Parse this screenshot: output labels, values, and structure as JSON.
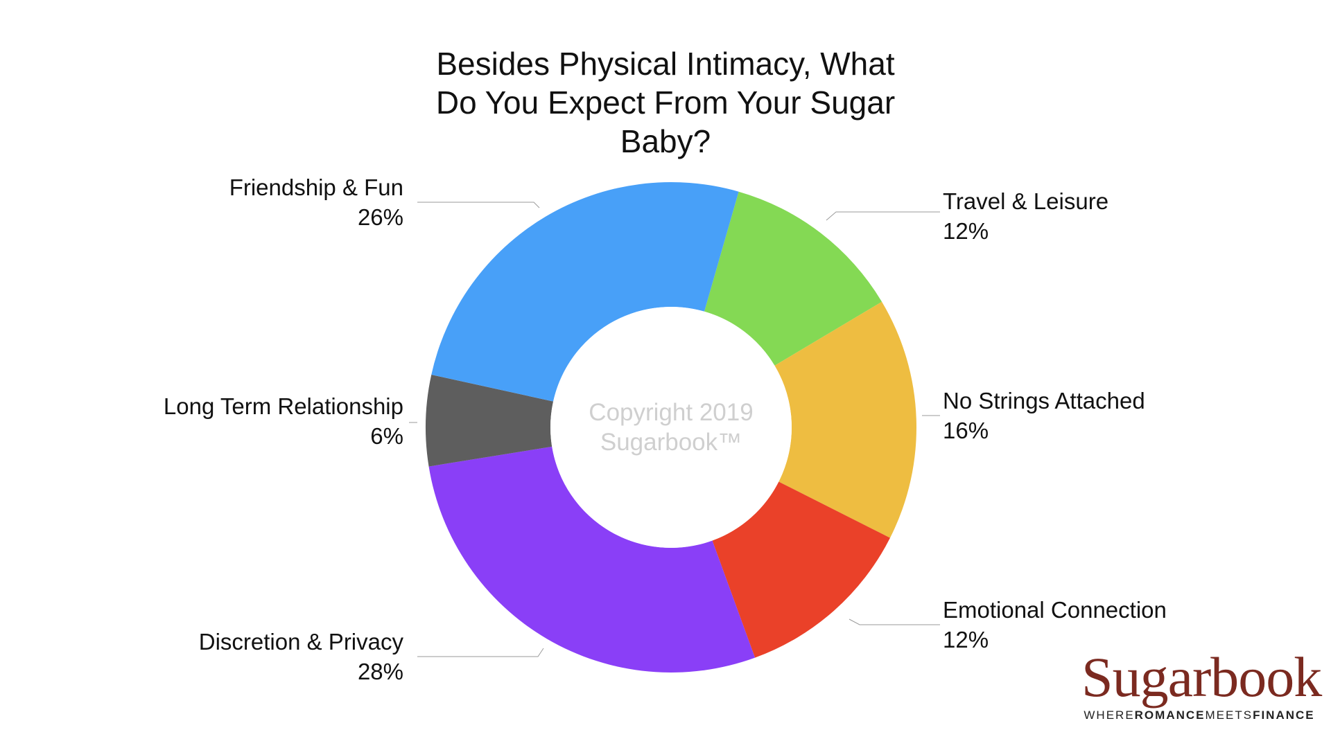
{
  "chart_data": {
    "type": "pie",
    "title": "Besides Physical Intimacy, What\nDo You Expect From Your Sugar\nBaby?",
    "center_text": [
      "Copyright 2019",
      "Sugarbook™"
    ],
    "slices": [
      {
        "label": "Travel & Leisure",
        "percent_label": "12%",
        "value": 12,
        "color": "#84d954"
      },
      {
        "label": "No Strings Attached",
        "percent_label": "16%",
        "value": 16,
        "color": "#eebd41"
      },
      {
        "label": "Emotional Connection",
        "percent_label": "12%",
        "value": 12,
        "color": "#ea4129"
      },
      {
        "label": "Discretion & Privacy",
        "percent_label": "28%",
        "value": 28,
        "color": "#8a3ff7"
      },
      {
        "label": "Long Term Relationship",
        "percent_label": "6%",
        "value": 6,
        "color": "#5e5e5e"
      },
      {
        "label": "Friendship & Fun",
        "percent_label": "26%",
        "value": 26,
        "color": "#48a0f8"
      }
    ]
  },
  "logo": {
    "word": "Sugarbook",
    "tagline": {
      "part1": "WHERE",
      "part2": "ROMANCE",
      "part3": "MEETS",
      "part4": "FINANCE"
    }
  }
}
